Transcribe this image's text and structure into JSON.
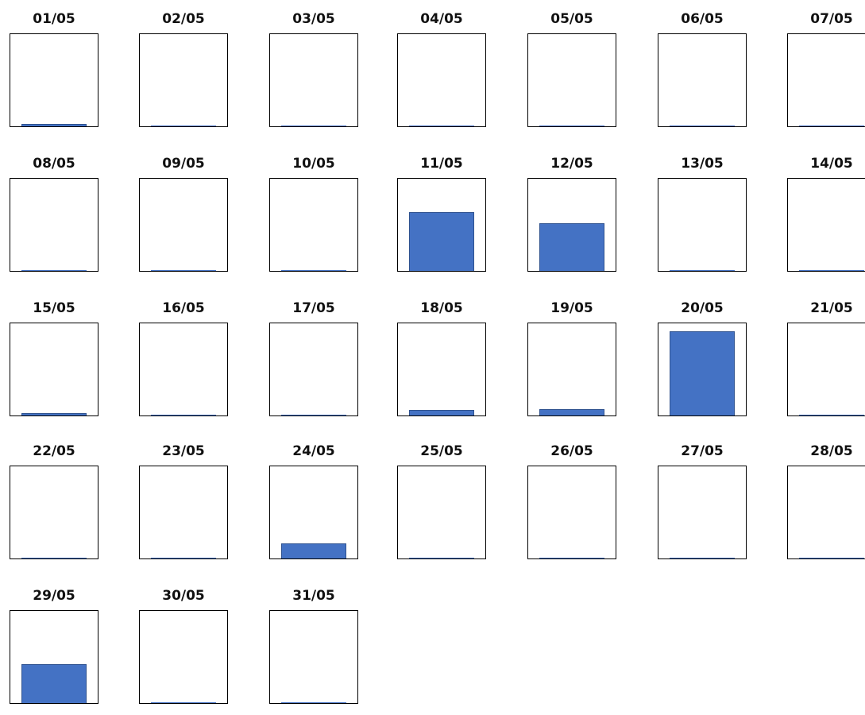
{
  "chart_data": {
    "type": "bar",
    "layout": "small-multiples",
    "ylim": [
      0,
      1
    ],
    "series_color": "#4472c4",
    "panels": [
      {
        "label": "01/05",
        "value": 0.03
      },
      {
        "label": "02/05",
        "value": 0.005
      },
      {
        "label": "03/05",
        "value": 0.005
      },
      {
        "label": "04/05",
        "value": 0.005
      },
      {
        "label": "05/05",
        "value": 0.005
      },
      {
        "label": "06/05",
        "value": 0.005
      },
      {
        "label": "07/05",
        "value": 0.005
      },
      {
        "label": "08/05",
        "value": 0.005
      },
      {
        "label": "09/05",
        "value": 0.005
      },
      {
        "label": "10/05",
        "value": 0.005
      },
      {
        "label": "11/05",
        "value": 0.64
      },
      {
        "label": "12/05",
        "value": 0.52
      },
      {
        "label": "13/05",
        "value": 0.005
      },
      {
        "label": "14/05",
        "value": 0.005
      },
      {
        "label": "15/05",
        "value": 0.03
      },
      {
        "label": "16/05",
        "value": 0.005
      },
      {
        "label": "17/05",
        "value": 0.005
      },
      {
        "label": "18/05",
        "value": 0.06
      },
      {
        "label": "19/05",
        "value": 0.07
      },
      {
        "label": "20/05",
        "value": 0.91
      },
      {
        "label": "21/05",
        "value": 0.005
      },
      {
        "label": "22/05",
        "value": 0.005
      },
      {
        "label": "23/05",
        "value": 0.005
      },
      {
        "label": "24/05",
        "value": 0.16
      },
      {
        "label": "25/05",
        "value": 0.005
      },
      {
        "label": "26/05",
        "value": 0.005
      },
      {
        "label": "27/05",
        "value": 0.005
      },
      {
        "label": "28/05",
        "value": 0.005
      },
      {
        "label": "29/05",
        "value": 0.42
      },
      {
        "label": "30/05",
        "value": 0.005
      },
      {
        "label": "31/05",
        "value": 0.005
      }
    ]
  }
}
